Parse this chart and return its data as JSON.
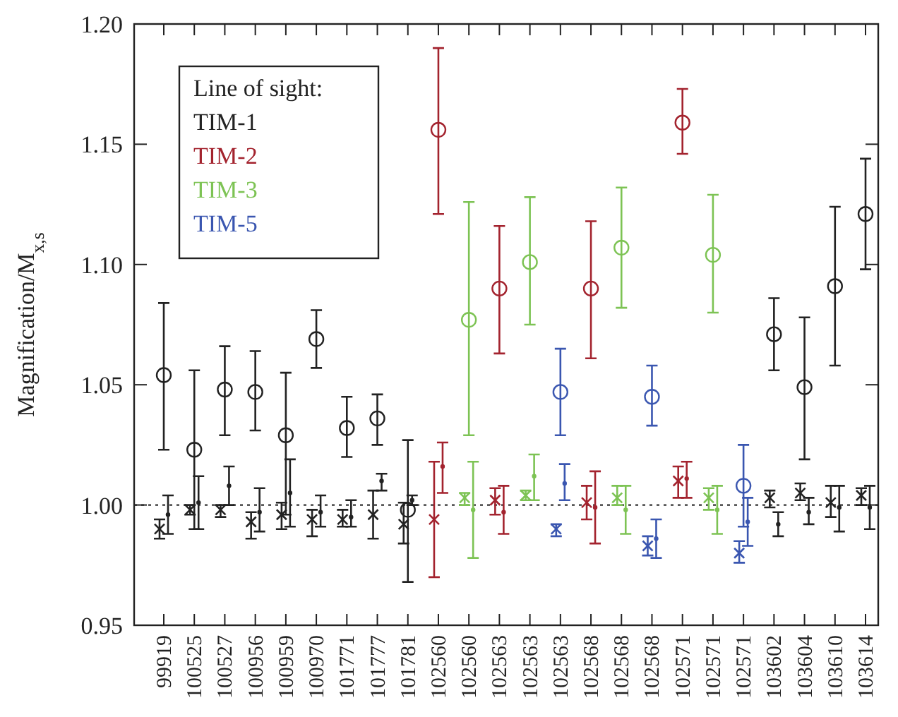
{
  "chart_data": {
    "type": "scatter",
    "ylabel": "Magnification/M$_{x,s}$",
    "legend_title": "Line of sight:",
    "legend": "top left",
    "categories": [
      "99919",
      "100525",
      "100527",
      "100956",
      "100959",
      "100970",
      "101771",
      "101777",
      "101781",
      "102560",
      "102560",
      "102563",
      "102563",
      "102563",
      "102568",
      "102568",
      "102568",
      "102571",
      "102571",
      "102571",
      "103602",
      "103604",
      "103610",
      "103614"
    ],
    "ylim": [
      0.95,
      1.2
    ],
    "yticks": [
      0.95,
      {
        "value": 1,
        "label": "1.00"
      },
      1.05,
      {
        "value": 1.1,
        "label": "1.10"
      },
      1.15,
      {
        "value": 1.2,
        "label": "1.20"
      }
    ],
    "ref_lines": [
      {
        "axis": "y",
        "value": 1,
        "line_style": "dotted",
        "color": "#333333"
      }
    ],
    "series": [
      {
        "name": "TIM-1",
        "color": "#222222",
        "marker": "circle",
        "values": [
          1.054,
          1.023,
          1.048,
          1.047,
          1.029,
          1.069,
          1.032,
          1.036,
          0.998,
          null,
          null,
          null,
          null,
          null,
          null,
          null,
          null,
          null,
          null,
          null,
          1.071,
          1.049,
          1.091,
          1.121
        ],
        "errors": [
          [
            1.023,
            1.084
          ],
          [
            0.99,
            1.056
          ],
          [
            1.029,
            1.066
          ],
          [
            1.031,
            1.064
          ],
          [
            0.996,
            1.055
          ],
          [
            1.057,
            1.081
          ],
          [
            1.02,
            1.045
          ],
          [
            1.025,
            1.046
          ],
          [
            0.968,
            1.027
          ],
          null,
          null,
          null,
          null,
          null,
          null,
          null,
          null,
          null,
          null,
          null,
          [
            1.056,
            1.086
          ],
          [
            1.019,
            1.078
          ],
          [
            1.058,
            1.124
          ],
          [
            1.098,
            1.144
          ]
        ]
      },
      {
        "name": "TIM-2",
        "color": "#a3232e",
        "marker": "circle",
        "values": [
          null,
          null,
          null,
          null,
          null,
          null,
          null,
          null,
          null,
          1.156,
          null,
          1.09,
          null,
          null,
          1.09,
          null,
          null,
          1.159,
          null,
          null,
          null,
          null,
          null,
          null
        ],
        "errors": [
          null,
          null,
          null,
          null,
          null,
          null,
          null,
          null,
          null,
          [
            1.121,
            1.19
          ],
          null,
          [
            1.063,
            1.116
          ],
          null,
          null,
          [
            1.061,
            1.118
          ],
          null,
          null,
          [
            1.146,
            1.173
          ],
          null,
          null,
          null,
          null,
          null,
          null
        ]
      },
      {
        "name": "TIM-3",
        "color": "#7dc354",
        "marker": "circle",
        "values": [
          null,
          null,
          null,
          null,
          null,
          null,
          null,
          null,
          null,
          null,
          1.077,
          null,
          1.101,
          null,
          null,
          1.107,
          null,
          null,
          1.104,
          null,
          null,
          null,
          null,
          null
        ],
        "errors": [
          null,
          null,
          null,
          null,
          null,
          null,
          null,
          null,
          null,
          null,
          [
            1.029,
            1.126
          ],
          null,
          [
            1.075,
            1.128
          ],
          null,
          null,
          [
            1.082,
            1.132
          ],
          null,
          null,
          [
            1.08,
            1.129
          ],
          null,
          null,
          null,
          null,
          null
        ]
      },
      {
        "name": "TIM-5",
        "color": "#3a56b0",
        "marker": "circle",
        "values": [
          null,
          null,
          null,
          null,
          null,
          null,
          null,
          null,
          null,
          null,
          null,
          null,
          null,
          1.047,
          null,
          null,
          1.045,
          null,
          null,
          1.008,
          null,
          null,
          null,
          null
        ],
        "errors": [
          null,
          null,
          null,
          null,
          null,
          null,
          null,
          null,
          null,
          null,
          null,
          null,
          null,
          [
            1.029,
            1.065
          ],
          null,
          null,
          [
            1.033,
            1.058
          ],
          null,
          null,
          [
            0.991,
            1.025
          ],
          null,
          null,
          null,
          null
        ]
      },
      {
        "color": "#222222",
        "marker": "cross",
        "values": [
          0.99,
          0.998,
          0.998,
          0.993,
          0.996,
          0.994,
          0.994,
          0.996,
          0.992,
          null,
          null,
          null,
          null,
          null,
          null,
          null,
          null,
          null,
          null,
          null,
          1.003,
          1.005,
          1.001,
          1.004
        ],
        "errors": [
          [
            0.986,
            0.994
          ],
          [
            0.996,
            1.0
          ],
          [
            0.995,
            1.0
          ],
          [
            0.986,
            0.997
          ],
          [
            0.99,
            1.001
          ],
          [
            0.987,
            0.998
          ],
          [
            0.991,
            0.998
          ],
          [
            0.986,
            1.006
          ],
          [
            0.984,
            1.001
          ],
          null,
          null,
          null,
          null,
          null,
          null,
          null,
          null,
          null,
          null,
          null,
          [
            0.999,
            1.006
          ],
          [
            1.002,
            1.009
          ],
          [
            0.995,
            1.008
          ],
          [
            1.0,
            1.007
          ]
        ]
      },
      {
        "color": "#a3232e",
        "marker": "cross",
        "values": [
          null,
          null,
          null,
          null,
          null,
          null,
          null,
          null,
          null,
          0.994,
          null,
          1.002,
          null,
          null,
          1.001,
          null,
          null,
          1.01,
          null,
          null,
          null,
          null,
          null,
          null
        ],
        "errors": [
          null,
          null,
          null,
          null,
          null,
          null,
          null,
          null,
          null,
          [
            0.97,
            1.018
          ],
          null,
          [
            0.996,
            1.007
          ],
          null,
          null,
          [
            0.994,
            1.008
          ],
          null,
          null,
          [
            1.003,
            1.016
          ],
          null,
          null,
          null,
          null,
          null,
          null
        ]
      },
      {
        "color": "#7dc354",
        "marker": "cross",
        "values": [
          null,
          null,
          null,
          null,
          null,
          null,
          null,
          null,
          null,
          null,
          1.003,
          null,
          1.004,
          null,
          null,
          1.003,
          null,
          null,
          1.003,
          null,
          null,
          null,
          null,
          null
        ],
        "errors": [
          null,
          null,
          null,
          null,
          null,
          null,
          null,
          null,
          null,
          null,
          [
            1.0,
            1.005
          ],
          null,
          [
            1.002,
            1.006
          ],
          null,
          null,
          [
            1.0,
            1.008
          ],
          null,
          null,
          [
            0.998,
            1.007
          ],
          null,
          null,
          null,
          null,
          null
        ]
      },
      {
        "color": "#3a56b0",
        "marker": "cross",
        "values": [
          null,
          null,
          null,
          null,
          null,
          null,
          null,
          null,
          null,
          null,
          null,
          null,
          null,
          0.99,
          null,
          null,
          0.983,
          null,
          null,
          0.98,
          null,
          null,
          null,
          null
        ],
        "errors": [
          null,
          null,
          null,
          null,
          null,
          null,
          null,
          null,
          null,
          null,
          null,
          null,
          null,
          [
            0.987,
            0.992
          ],
          null,
          null,
          [
            0.979,
            0.987
          ],
          null,
          null,
          [
            0.976,
            0.985
          ],
          null,
          null,
          null,
          null
        ]
      },
      {
        "color": "#222222",
        "values": [
          0.996,
          1.001,
          1.008,
          0.997,
          1.005,
          0.997,
          0.995,
          1.01,
          1.002,
          null,
          null,
          null,
          null,
          null,
          null,
          null,
          null,
          null,
          null,
          null,
          0.992,
          0.997,
          0.999,
          0.999
        ],
        "errors": [
          [
            0.988,
            1.004
          ],
          [
            0.99,
            1.012
          ],
          [
            1.0,
            1.016
          ],
          [
            0.989,
            1.007
          ],
          [
            0.991,
            1.019
          ],
          [
            0.991,
            1.004
          ],
          [
            0.991,
            1.002
          ],
          [
            1.006,
            1.013
          ],
          [
            1.0,
            1.004
          ],
          null,
          null,
          null,
          null,
          null,
          null,
          null,
          null,
          null,
          null,
          null,
          [
            0.987,
            0.997
          ],
          [
            0.992,
            1.003
          ],
          [
            0.989,
            1.008
          ],
          [
            0.99,
            1.008
          ]
        ]
      },
      {
        "color": "#a3232e",
        "values": [
          null,
          null,
          null,
          null,
          null,
          null,
          null,
          null,
          null,
          1.016,
          null,
          0.997,
          null,
          null,
          0.999,
          null,
          null,
          1.011,
          null,
          null,
          null,
          null,
          null,
          null
        ],
        "errors": [
          null,
          null,
          null,
          null,
          null,
          null,
          null,
          null,
          null,
          [
            1.005,
            1.026
          ],
          null,
          [
            0.988,
            1.008
          ],
          null,
          null,
          [
            0.984,
            1.014
          ],
          null,
          null,
          [
            1.003,
            1.018
          ],
          null,
          null,
          null,
          null,
          null,
          null
        ]
      },
      {
        "color": "#7dc354",
        "values": [
          null,
          null,
          null,
          null,
          null,
          null,
          null,
          null,
          null,
          null,
          0.998,
          null,
          1.012,
          null,
          null,
          0.998,
          null,
          null,
          0.998,
          null,
          null,
          null,
          null,
          null
        ],
        "errors": [
          null,
          null,
          null,
          null,
          null,
          null,
          null,
          null,
          null,
          null,
          [
            0.978,
            1.018
          ],
          null,
          [
            1.002,
            1.021
          ],
          null,
          null,
          [
            0.988,
            1.008
          ],
          null,
          null,
          [
            0.988,
            1.008
          ],
          null,
          null,
          null,
          null,
          null
        ]
      },
      {
        "color": "#3a56b0",
        "values": [
          null,
          null,
          null,
          null,
          null,
          null,
          null,
          null,
          null,
          null,
          null,
          null,
          null,
          1.009,
          null,
          null,
          0.986,
          null,
          null,
          0.993,
          null,
          null,
          null,
          null
        ],
        "errors": [
          null,
          null,
          null,
          null,
          null,
          null,
          null,
          null,
          null,
          null,
          null,
          null,
          null,
          [
            1.002,
            1.017
          ],
          null,
          null,
          [
            0.978,
            0.994
          ],
          null,
          null,
          [
            0.983,
            1.003
          ],
          null,
          null,
          null,
          null
        ]
      }
    ]
  }
}
